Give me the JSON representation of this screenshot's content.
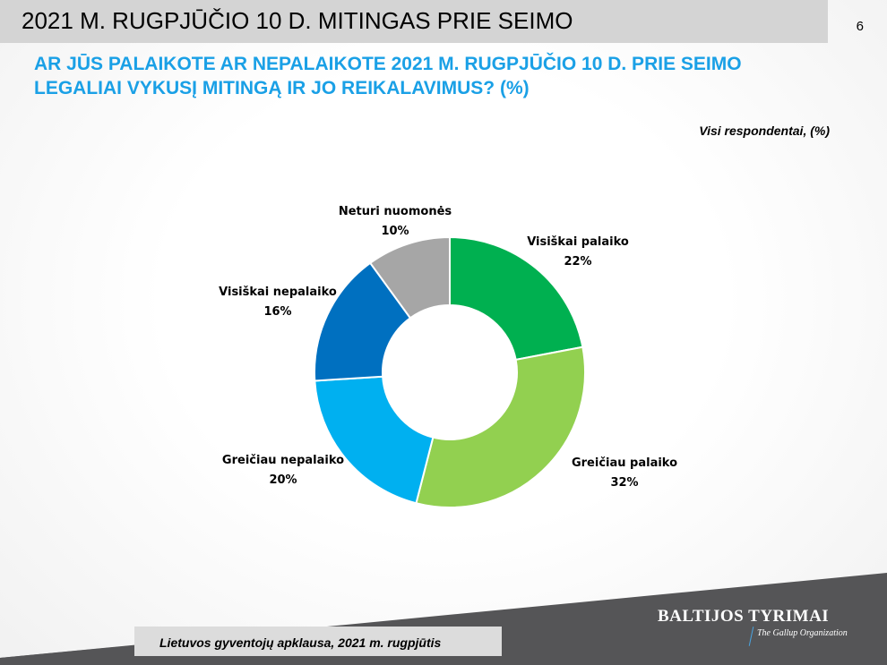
{
  "header": {
    "title": "2021 M. RUGPJŪČIO 10 D. MITINGAS PRIE SEIMO",
    "page_number": "6"
  },
  "question": {
    "line1": "AR JŪS PALAIKOTE AR NEPALAIKOTE 2021 M. RUGPJŪČIO 10 D. PRIE SEIMO",
    "line2": "LEGALIAI VYKUSĮ MITINGĄ IR JO REIKALAVIMUS? (%)"
  },
  "base_note": "Visi respondentai, (%)",
  "footer": {
    "source": "Lietuvos gyventojų apklausa, 2021 m. rugpjūtis",
    "logo_title": "BALTIJOS TYRIMAI",
    "logo_sub": "The Gallup Organization"
  },
  "chart_data": {
    "type": "pie",
    "donut": true,
    "slices": [
      {
        "label": "Visiškai palaiko",
        "value": 22,
        "display": "22%",
        "color": "#00b050"
      },
      {
        "label": "Greičiau palaiko",
        "value": 32,
        "display": "32%",
        "color": "#92d050"
      },
      {
        "label": "Greičiau nepalaiko",
        "value": 20,
        "display": "20%",
        "color": "#00b0f0"
      },
      {
        "label": "Visiškai nepalaiko",
        "value": 16,
        "display": "16%",
        "color": "#0070c0"
      },
      {
        "label": "Neturi nuomonės",
        "value": 10,
        "display": "10%",
        "color": "#a6a6a6"
      }
    ],
    "start": "top",
    "direction": "clockwise"
  }
}
